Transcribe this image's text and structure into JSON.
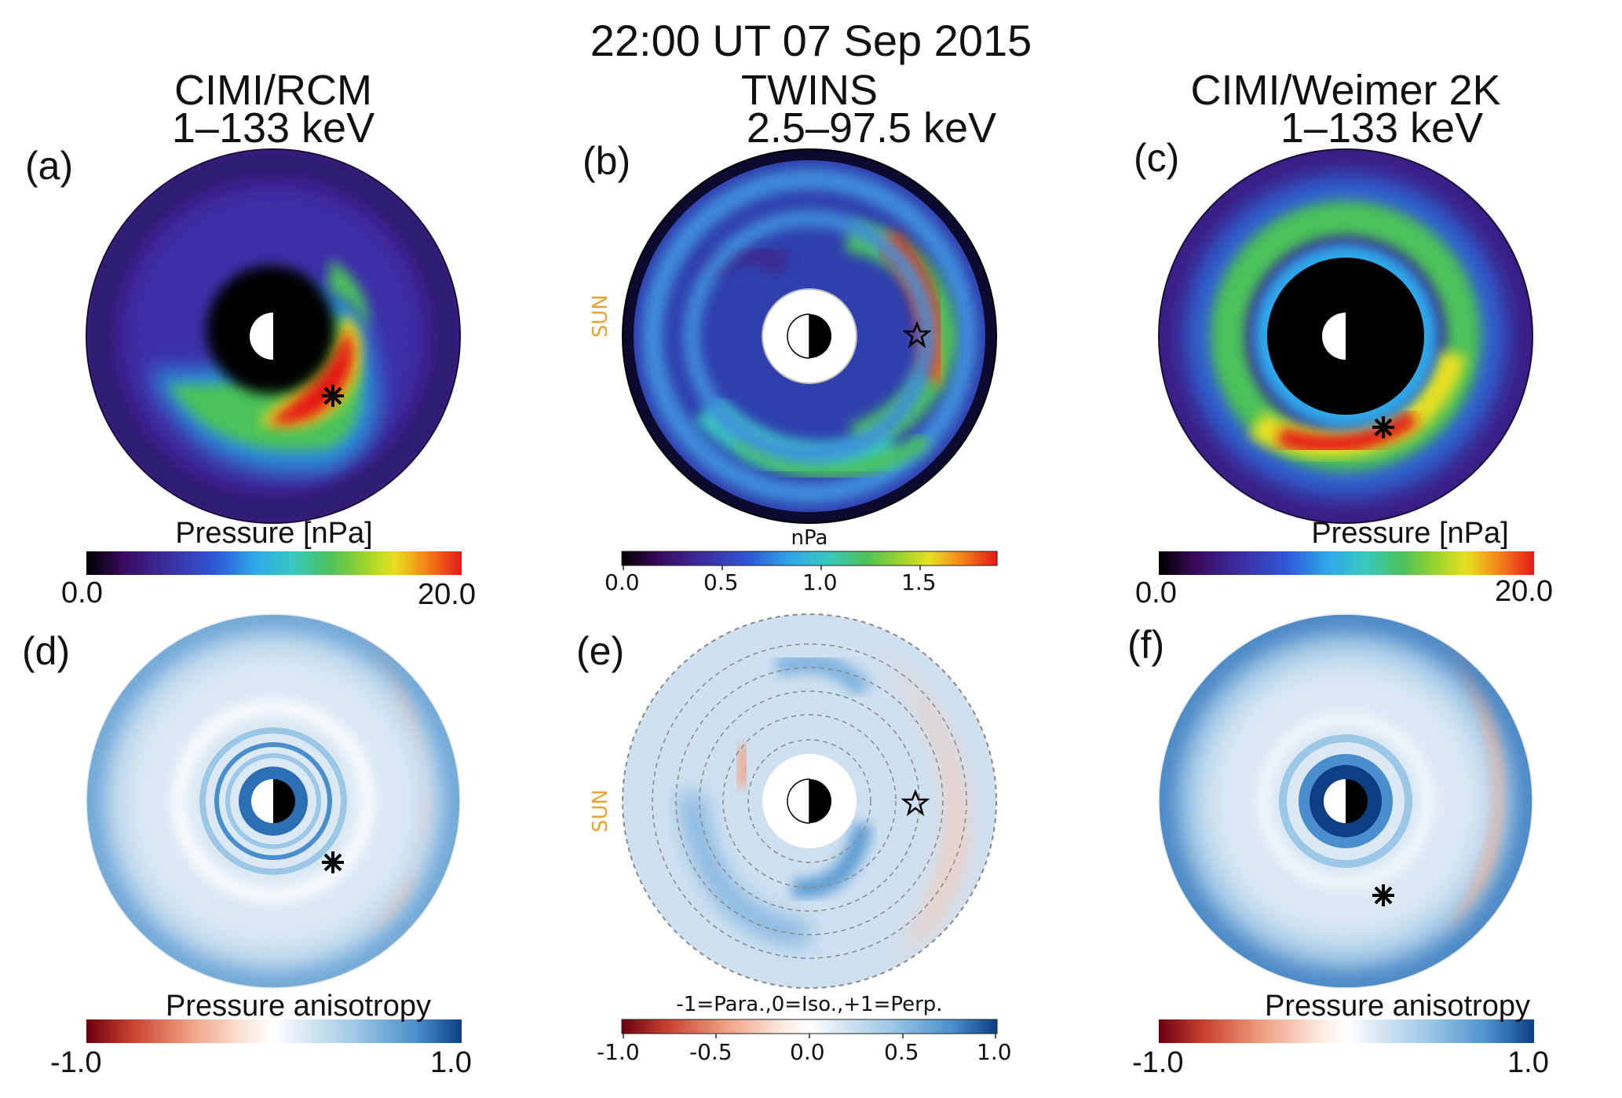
{
  "figure": {
    "main_title": "22:00 UT 07 Sep 2015",
    "columns": [
      {
        "title_line1": "CIMI/RCM",
        "title_line2": "1–133 keV"
      },
      {
        "title_line1": "TWINS",
        "title_line2": "2.5–97.5 keV"
      },
      {
        "title_line1": "CIMI/Weimer 2K",
        "title_line2": "1–133 keV"
      }
    ],
    "panels": {
      "a": {
        "label": "(a)"
      },
      "b": {
        "label": "(b)",
        "sun": "SUN"
      },
      "c": {
        "label": "(c)"
      },
      "d": {
        "label": "(d)"
      },
      "e": {
        "label": "(e)",
        "sun": "SUN"
      },
      "f": {
        "label": "(f)"
      }
    },
    "colorbars": {
      "a": {
        "label": "Pressure [nPa]",
        "min": "0.0",
        "max": "20.0"
      },
      "b": {
        "label": "nPa",
        "ticks": [
          "0.0",
          "0.5",
          "1.0",
          "1.5"
        ]
      },
      "c": {
        "label": "Pressure [nPa]",
        "min": "0.0",
        "max": "20.0"
      },
      "d": {
        "label": "Pressure anisotropy",
        "min": "-1.0",
        "max": "1.0"
      },
      "e": {
        "label": "-1=Para.,0=Iso.,+1=Perp.",
        "ticks": [
          "-1.0",
          "-0.5",
          "0.0",
          "0.5",
          "1.0"
        ]
      },
      "f": {
        "label": "Pressure anisotropy",
        "min": "-1.0",
        "max": "1.0"
      }
    },
    "colors": {
      "pressure_scale": [
        "#000000",
        "#3a0a5e",
        "#3b2fa0",
        "#2f56d8",
        "#2ea8e8",
        "#38c8c0",
        "#4cc25a",
        "#9ad42c",
        "#e8e020",
        "#f58a18",
        "#e41818"
      ],
      "anisotropy_scale": [
        "#6b0010",
        "#c8402e",
        "#f0a284",
        "#fbe6dc",
        "#ffffff",
        "#dbe9f4",
        "#9cc7e6",
        "#4a8fcb",
        "#0d3f82"
      ],
      "sun_label": "#e8a430"
    }
  }
}
